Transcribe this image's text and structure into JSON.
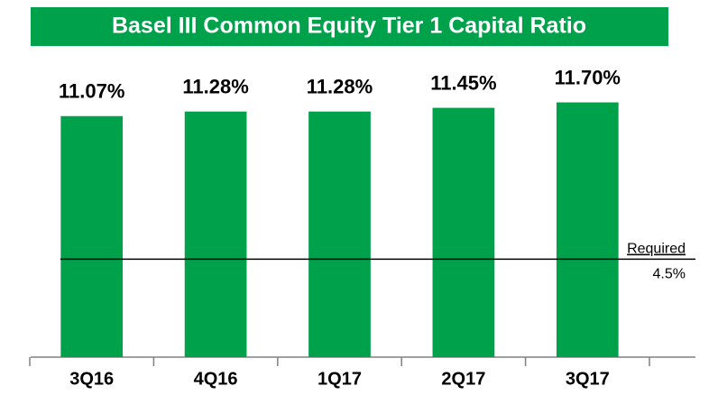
{
  "chart_data": {
    "type": "bar",
    "title": "Basel III Common Equity Tier 1 Capital Ratio",
    "categories": [
      "3Q16",
      "4Q16",
      "1Q17",
      "2Q17",
      "3Q17"
    ],
    "values": [
      11.07,
      11.28,
      11.28,
      11.45,
      11.7
    ],
    "value_labels": [
      "11.07%",
      "11.28%",
      "11.28%",
      "11.45%",
      "11.70%"
    ],
    "color": "#00a14b",
    "ylim": [
      0,
      14
    ],
    "reference_line": {
      "value": 4.5,
      "label": "Required",
      "value_label": "4.5%"
    }
  }
}
